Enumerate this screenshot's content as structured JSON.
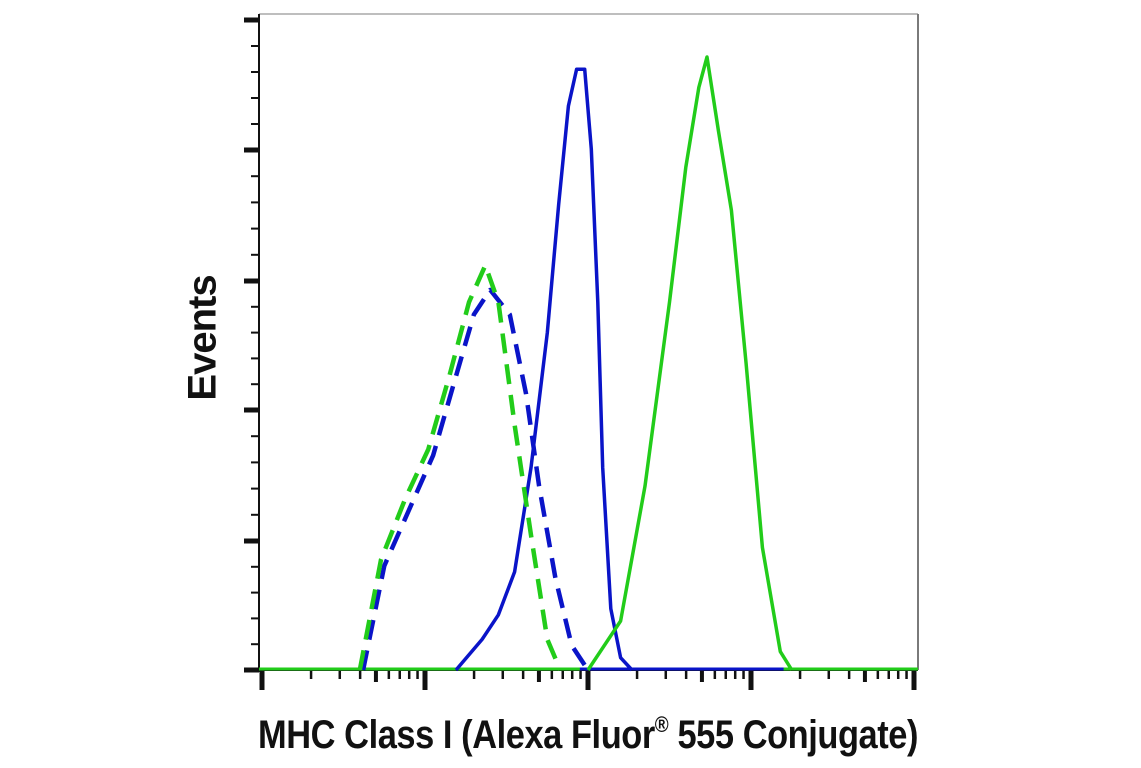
{
  "chart_data": {
    "type": "line",
    "subtype": "flow-cytometry-histogram",
    "title": "",
    "xlabel": "MHC Class I (Alexa Fluor® 555 Conjugate)",
    "ylabel": "Events",
    "x_scale": "log",
    "x_tick_labels": [],
    "y_tick_labels": [],
    "grid": false,
    "legend": null,
    "xlim_decades": [
      0,
      4
    ],
    "ylim": [
      0,
      100
    ],
    "series": [
      {
        "name": "blue-solid",
        "color": "#0a14c8",
        "style": "solid",
        "x_log_decade": [
          1.19,
          1.35,
          1.45,
          1.55,
          1.65,
          1.75,
          1.82,
          1.88,
          1.93,
          1.98,
          2.02,
          2.06,
          2.09,
          2.14,
          2.2,
          2.27
        ],
        "y_percent": [
          0,
          5,
          9,
          16,
          33,
          55,
          76,
          92,
          98,
          98,
          85,
          60,
          33,
          10,
          2,
          0
        ]
      },
      {
        "name": "green-solid",
        "color": "#22cc1a",
        "style": "solid",
        "x_log_decade": [
          2.0,
          2.2,
          2.35,
          2.5,
          2.6,
          2.68,
          2.73,
          2.8,
          2.88,
          2.97,
          3.07,
          3.18,
          3.25
        ],
        "y_percent": [
          0,
          8,
          30,
          60,
          82,
          95,
          100,
          88,
          75,
          50,
          20,
          3,
          0
        ]
      },
      {
        "name": "blue-dashed",
        "color": "#0a14c8",
        "style": "dashed",
        "x_log_decade": [
          0.62,
          0.75,
          0.9,
          1.05,
          1.18,
          1.3,
          1.4,
          1.52,
          1.62,
          1.7,
          1.8,
          1.9,
          2.0
        ],
        "y_percent": [
          0,
          17,
          26,
          35,
          47,
          58,
          62,
          58,
          45,
          30,
          15,
          4,
          0
        ]
      },
      {
        "name": "green-dashed",
        "color": "#22cc1a",
        "style": "dashed",
        "x_log_decade": [
          0.6,
          0.73,
          0.88,
          1.02,
          1.15,
          1.27,
          1.37,
          1.45,
          1.55,
          1.65,
          1.75,
          1.83
        ],
        "y_percent": [
          0,
          18,
          28,
          36,
          48,
          60,
          66,
          60,
          40,
          22,
          5,
          0
        ]
      }
    ]
  },
  "axes": {
    "x_label": "MHC Class I (Alexa Fluor",
    "x_label_reg": "®",
    "x_label_tail": " 555 Conjugate)",
    "y_label": "Events"
  }
}
